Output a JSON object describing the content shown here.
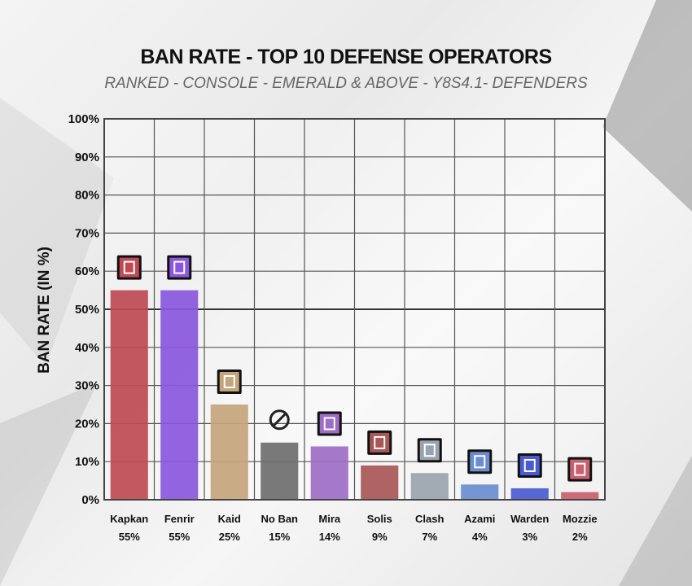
{
  "chart_data": {
    "type": "bar",
    "title": "BAN RATE - TOP 10 DEFENSE OPERATORS",
    "subtitle": "RANKED - CONSOLE - EMERALD & ABOVE - Y8S4.1- DEFENDERS",
    "ylabel": "BAN RATE (IN %)",
    "xlabel": "",
    "ylim": [
      0,
      100
    ],
    "yticks": [
      "0%",
      "10%",
      "20%",
      "30%",
      "40%",
      "50%",
      "60%",
      "70%",
      "80%",
      "90%",
      "100%"
    ],
    "grid": true,
    "categories": [
      "Kapkan",
      "Fenrir",
      "Kaid",
      "No Ban",
      "Mira",
      "Solis",
      "Clash",
      "Azami",
      "Warden",
      "Mozzie"
    ],
    "values": [
      55,
      55,
      25,
      15,
      14,
      9,
      7,
      4,
      3,
      2
    ],
    "value_labels": [
      "55%",
      "55%",
      "25%",
      "15%",
      "14%",
      "9%",
      "7%",
      "4%",
      "3%",
      "2%"
    ],
    "bar_colors": [
      "#bf4a54",
      "#8a57dd",
      "#c4a47c",
      "#6e6e6e",
      "#9e6cc4",
      "#a85656",
      "#9aa3ad",
      "#6a8dcf",
      "#4a5bd0",
      "#c8606e"
    ],
    "icons": [
      "kapkan-icon",
      "fenrir-icon",
      "kaid-icon",
      "no-ban-icon",
      "mira-icon",
      "solis-icon",
      "clash-icon",
      "azami-icon",
      "warden-icon",
      "mozzie-icon"
    ]
  }
}
